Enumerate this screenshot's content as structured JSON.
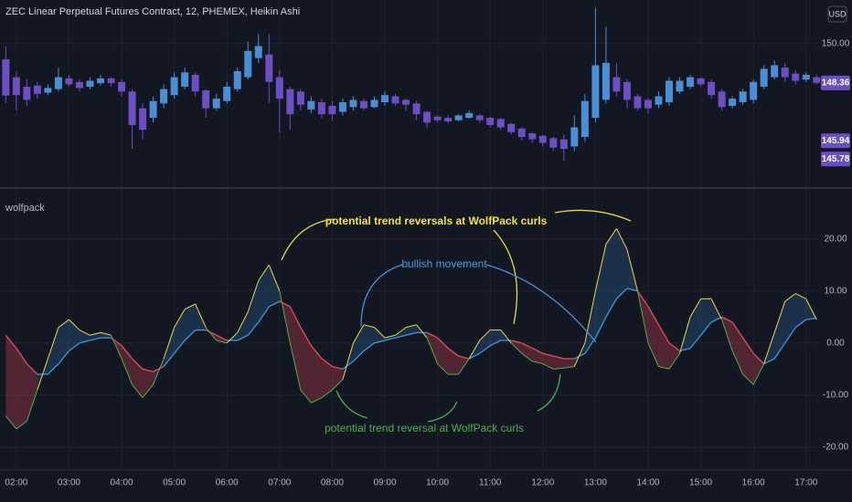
{
  "chart_data": [
    {
      "type": "candlestick",
      "title": "ZEC Linear Perpetual Futures Contract, 12, PHEMEX, Heikin Ashi",
      "currency": "USD",
      "x": [
        1.8,
        2,
        2.2,
        2.4,
        2.6,
        2.8,
        3,
        3.2,
        3.4,
        3.6,
        3.8,
        4,
        4.2,
        4.4,
        4.6,
        4.8,
        5,
        5.2,
        5.4,
        5.6,
        5.8,
        6,
        6.2,
        6.4,
        6.6,
        6.8,
        7,
        7.2,
        7.4,
        7.6,
        7.8,
        8,
        8.2,
        8.4,
        8.6,
        8.8,
        9,
        9.2,
        9.4,
        9.6,
        9.8,
        10,
        10.2,
        10.4,
        10.6,
        10.8,
        11,
        11.2,
        11.4,
        11.6,
        11.8,
        12,
        12.2,
        12.4,
        12.6,
        12.8,
        13,
        13.2,
        13.4,
        13.6,
        13.8,
        14,
        14.2,
        14.4,
        14.6,
        14.8,
        15,
        15.2,
        15.4,
        15.6,
        15.8,
        16,
        16.2,
        16.4,
        16.6,
        16.8,
        17,
        17.2
      ],
      "open": [
        149.35,
        148.6,
        148.2,
        148.25,
        147.95,
        148.1,
        148.55,
        148.4,
        148.2,
        148.35,
        148.55,
        148.4,
        148.0,
        147.3,
        146.9,
        147.5,
        147.85,
        148.2,
        148.7,
        148.05,
        147.3,
        147.6,
        148.1,
        148.6,
        149.4,
        149.55,
        148.6,
        148.1,
        148.0,
        147.25,
        147.55,
        147.4,
        147.15,
        147.35,
        147.6,
        147.35,
        147.55,
        147.8,
        147.65,
        147.5,
        147.15,
        146.95,
        146.9,
        146.8,
        146.9,
        147.0,
        146.9,
        146.85,
        146.65,
        146.45,
        146.25,
        146.15,
        146.05,
        146.0,
        145.7,
        146.1,
        146.9,
        147.65,
        148.6,
        148.4,
        147.8,
        147.65,
        147.45,
        147.55,
        148.0,
        148.2,
        148.55,
        148.4,
        148.0,
        147.4,
        147.55,
        147.65,
        148.2,
        148.6,
        149.0,
        148.75,
        148.5,
        148.6
      ],
      "high": [
        149.9,
        148.8,
        148.5,
        148.4,
        148.3,
        149.0,
        148.7,
        148.5,
        148.6,
        148.7,
        148.6,
        148.5,
        148.1,
        147.5,
        147.8,
        148.3,
        148.8,
        149.0,
        148.8,
        148.1,
        147.9,
        148.4,
        149.0,
        150.1,
        150.4,
        150.4,
        148.9,
        148.2,
        148.1,
        147.8,
        147.7,
        147.6,
        147.7,
        147.8,
        147.7,
        147.8,
        148.0,
        147.9,
        147.7,
        147.6,
        147.2,
        147.0,
        147.0,
        147.05,
        147.2,
        147.05,
        146.95,
        146.9,
        146.7,
        146.5,
        146.3,
        146.2,
        146.1,
        146.2,
        147.0,
        147.9,
        151.5,
        150.7,
        149.2,
        148.5,
        147.9,
        147.75,
        148.0,
        148.6,
        148.6,
        148.7,
        148.6,
        148.5,
        148.1,
        147.8,
        148.1,
        148.5,
        149.1,
        149.3,
        149.2,
        148.9,
        148.8,
        148.7
      ],
      "low": [
        147.5,
        147.2,
        147.4,
        147.7,
        147.85,
        148.0,
        148.2,
        148.0,
        148.1,
        148.25,
        148.2,
        147.8,
        145.6,
        146.0,
        146.7,
        147.3,
        147.7,
        148.1,
        147.8,
        146.9,
        147.2,
        147.5,
        148.0,
        148.5,
        149.2,
        147.5,
        146.3,
        146.4,
        147.2,
        147.1,
        146.9,
        146.8,
        147.0,
        147.2,
        147.2,
        147.3,
        147.4,
        147.4,
        147.2,
        146.8,
        146.5,
        146.7,
        146.65,
        146.75,
        146.85,
        146.7,
        146.5,
        146.4,
        146.2,
        145.95,
        145.85,
        145.7,
        145.5,
        145.1,
        145.5,
        145.9,
        146.7,
        147.5,
        147.8,
        147.3,
        147.2,
        147.1,
        147.3,
        147.4,
        147.9,
        148.1,
        148.2,
        147.7,
        147.2,
        147.3,
        147.45,
        147.5,
        148.1,
        148.5,
        148.4,
        148.3,
        148.4,
        148.3
      ],
      "close": [
        147.83,
        147.85,
        147.65,
        147.9,
        148.15,
        148.6,
        148.3,
        148.15,
        148.45,
        148.55,
        148.35,
        148.0,
        146.6,
        146.4,
        147.6,
        148.1,
        148.6,
        148.8,
        148.0,
        147.3,
        147.7,
        148.2,
        148.85,
        149.7,
        149.9,
        148.4,
        147.7,
        147.05,
        147.45,
        147.6,
        147.05,
        147.05,
        147.55,
        147.65,
        147.3,
        147.65,
        147.85,
        147.5,
        147.45,
        147.05,
        146.7,
        146.8,
        146.75,
        147.0,
        147.1,
        146.8,
        146.6,
        146.5,
        146.3,
        146.1,
        146.0,
        145.85,
        145.65,
        145.6,
        146.5,
        147.6,
        149.1,
        149.2,
        148.0,
        147.65,
        147.3,
        147.3,
        147.8,
        148.45,
        148.45,
        148.6,
        148.3,
        147.85,
        147.35,
        147.7,
        148.0,
        148.4,
        148.95,
        149.1,
        148.6,
        148.45,
        148.7,
        148.36
      ],
      "up_color": "#4a8fd6",
      "down_color": "#6c4fc2",
      "xlim": [
        1.69,
        17.23
      ],
      "ylim": [
        144.0,
        151.83
      ],
      "yticks": [
        {
          "value": 150,
          "label": "150.00"
        }
      ],
      "price_labels": [
        148.36,
        145.94,
        145.78
      ],
      "price_label_color": "#6a4fc0",
      "grid": true
    },
    {
      "type": "line",
      "title": "wolfpack",
      "x": [
        1.8,
        2,
        2.2,
        2.4,
        2.6,
        2.8,
        3,
        3.2,
        3.4,
        3.6,
        3.8,
        4,
        4.2,
        4.4,
        4.6,
        4.8,
        5,
        5.2,
        5.4,
        5.6,
        5.8,
        6,
        6.2,
        6.4,
        6.6,
        6.8,
        7,
        7.2,
        7.4,
        7.6,
        7.8,
        8,
        8.2,
        8.4,
        8.6,
        8.8,
        9,
        9.2,
        9.4,
        9.6,
        9.8,
        10,
        10.2,
        10.4,
        10.6,
        10.8,
        11,
        11.2,
        11.4,
        11.6,
        11.8,
        12,
        12.2,
        12.4,
        12.6,
        12.8,
        13,
        13.2,
        13.4,
        13.6,
        13.8,
        14,
        14.2,
        14.4,
        14.6,
        14.8,
        15,
        15.2,
        15.4,
        15.6,
        15.8,
        16,
        16.2,
        16.4,
        16.6,
        16.8,
        17,
        17.2
      ],
      "series": [
        {
          "values": [
            -14,
            -16.5,
            -15,
            -9,
            -3,
            3,
            4.5,
            2.5,
            1.5,
            2,
            1.5,
            -3,
            -8,
            -10.5,
            -8,
            -3,
            3,
            6.5,
            7.5,
            3,
            0.5,
            0,
            2,
            6,
            12,
            15,
            10,
            0,
            -9,
            -11.5,
            -10.5,
            -9,
            -7,
            0,
            3.5,
            3,
            1,
            1.5,
            3,
            3.5,
            1,
            -4,
            -6,
            -6,
            -3,
            0.5,
            2.5,
            2.5,
            0,
            -2,
            -3.5,
            -4,
            -5,
            -4.8,
            -4.5,
            0,
            10,
            19,
            22,
            18,
            10,
            0,
            -4.5,
            -5,
            -2,
            5,
            8.5,
            8.5,
            4.5,
            -1.5,
            -6,
            -8,
            -4,
            2,
            8,
            9.5,
            8.5,
            4.5
          ],
          "up_color": "#e5d94b",
          "down_color": "#4caf50"
        },
        {
          "values": [
            1.5,
            -1,
            -4,
            -6,
            -6,
            -4,
            -1.5,
            0,
            0.5,
            1,
            1,
            -0.5,
            -3,
            -5,
            -5.5,
            -4.5,
            -2,
            0.5,
            2.5,
            2.5,
            1.5,
            0.5,
            0.5,
            1.5,
            4,
            7,
            8,
            7,
            3,
            -0.5,
            -3,
            -4.5,
            -5,
            -3.5,
            -1.5,
            0,
            0.5,
            1,
            1.5,
            2,
            2,
            1,
            -1,
            -2.5,
            -3,
            -2,
            -0.5,
            0.5,
            0.5,
            0,
            -1,
            -2,
            -2.5,
            -3,
            -3,
            -2,
            1,
            5,
            8.5,
            10.5,
            10,
            7,
            3.5,
            0,
            -1.5,
            -1,
            1.5,
            4,
            5,
            4,
            1,
            -2,
            -4,
            -3,
            0,
            3,
            4.5,
            4.8
          ],
          "up_color": "#3d8fd6",
          "down_color": "#e0475a"
        }
      ],
      "fill_up": "rgba(61,143,214,0.22)",
      "fill_down": "rgba(224,71,90,0.30)",
      "xlim": [
        1.69,
        17.23
      ],
      "ylim": [
        -24.4,
        29.6
      ],
      "yticks": [
        {
          "value": 20,
          "label": "20.00"
        },
        {
          "value": 10,
          "label": "10.00"
        },
        {
          "value": 0,
          "label": "0.00"
        },
        {
          "value": -10,
          "label": "-10.00"
        },
        {
          "value": -20,
          "label": "-20.00"
        }
      ],
      "xticks": [
        {
          "value": 2,
          "label": "02:00"
        },
        {
          "value": 3,
          "label": "03:00"
        },
        {
          "value": 4,
          "label": "04:00"
        },
        {
          "value": 5,
          "label": "05:00"
        },
        {
          "value": 6,
          "label": "06:00"
        },
        {
          "value": 7,
          "label": "07:00"
        },
        {
          "value": 8,
          "label": "08:00"
        },
        {
          "value": 9,
          "label": "09:00"
        },
        {
          "value": 10,
          "label": "10:00"
        },
        {
          "value": 11,
          "label": "11:00"
        },
        {
          "value": 12,
          "label": "12:00"
        },
        {
          "value": 13,
          "label": "13:00"
        },
        {
          "value": 14,
          "label": "14:00"
        },
        {
          "value": 15,
          "label": "15:00"
        },
        {
          "value": 16,
          "label": "16:00"
        },
        {
          "value": 17,
          "label": "17:00"
        }
      ],
      "annotations": [
        {
          "text": "potential trend reversals at WolfPack curls",
          "color": "#f5e13b"
        },
        {
          "text": "bullish movement",
          "color": "#4a9be0"
        },
        {
          "text": "potential trend reversal at WolfPack curls",
          "color": "#4caf50"
        }
      ],
      "grid": true
    }
  ]
}
